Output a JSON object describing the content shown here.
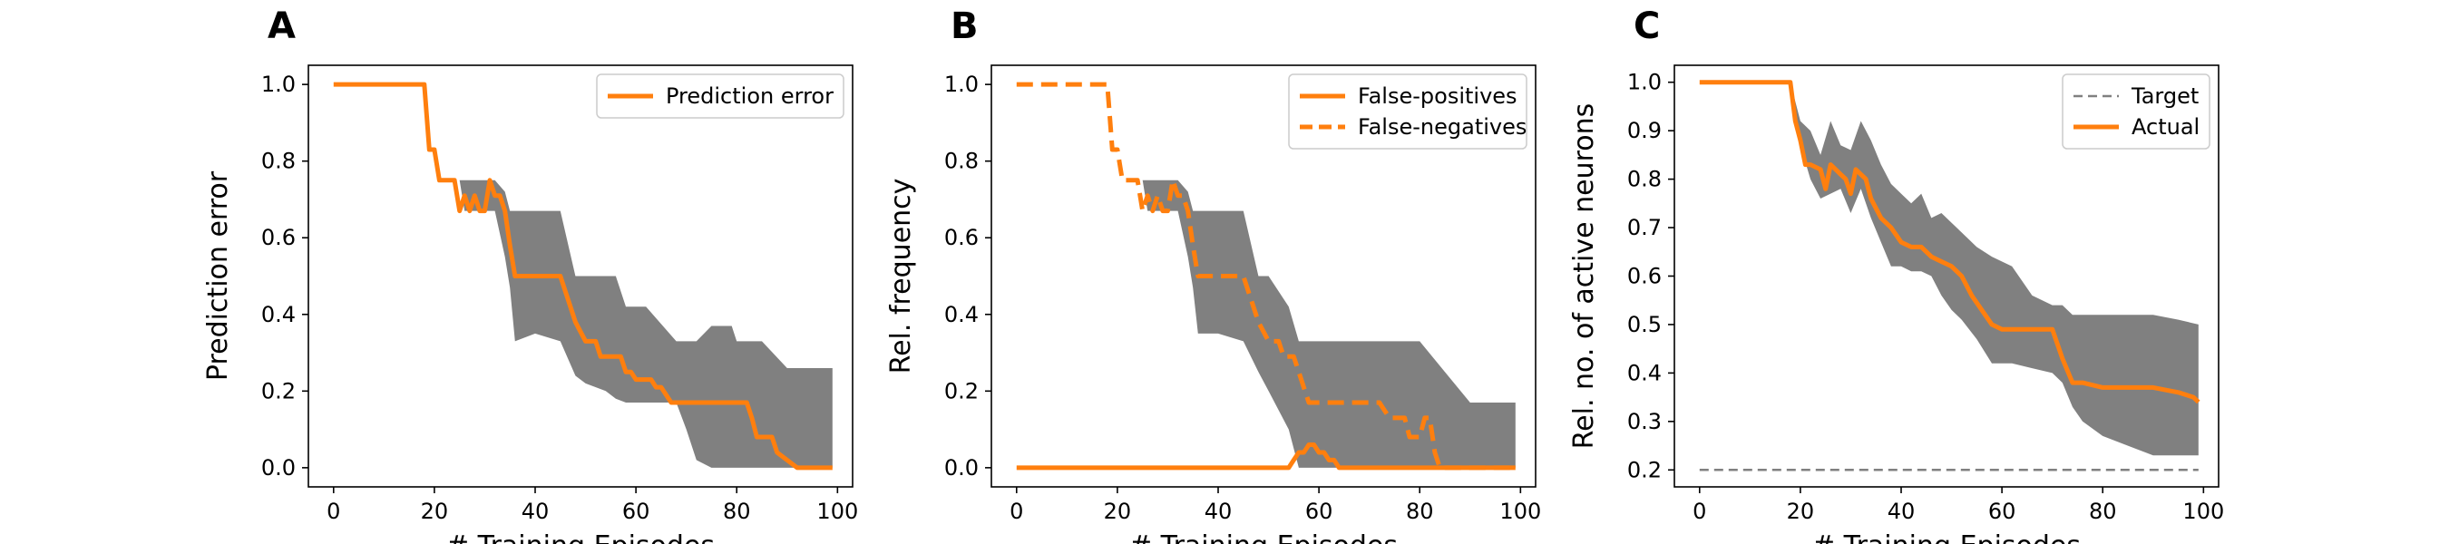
{
  "chart_data": [
    {
      "type": "line",
      "panel_label": "A",
      "xlabel": "# Training Episodes",
      "ylabel": "Prediction error",
      "xlim": [
        -5,
        103
      ],
      "ylim": [
        -0.05,
        1.05
      ],
      "xticks": [
        "0",
        "20",
        "40",
        "60",
        "80",
        "100"
      ],
      "yticks": [
        "0.0",
        "0.2",
        "0.4",
        "0.6",
        "0.8",
        "1.0"
      ],
      "legend_position": "upper-right",
      "legend": [
        "Prediction error"
      ],
      "band_color": "#808080",
      "band": {
        "x": [
          18,
          20,
          22,
          25,
          26,
          28,
          30,
          32,
          34,
          35,
          36,
          40,
          45,
          48,
          50,
          54,
          56,
          58,
          62,
          68,
          70,
          72,
          75,
          79,
          80,
          85,
          90,
          92,
          99
        ],
        "upper": [
          1.0,
          0.83,
          0.75,
          0.75,
          0.75,
          0.75,
          0.75,
          0.75,
          0.72,
          0.67,
          0.67,
          0.67,
          0.67,
          0.5,
          0.5,
          0.5,
          0.5,
          0.42,
          0.42,
          0.33,
          0.33,
          0.33,
          0.37,
          0.37,
          0.33,
          0.33,
          0.26,
          0.26,
          0.26
        ],
        "lower": [
          1.0,
          0.83,
          0.75,
          0.75,
          0.67,
          0.67,
          0.67,
          0.67,
          0.55,
          0.47,
          0.33,
          0.35,
          0.33,
          0.24,
          0.22,
          0.2,
          0.18,
          0.17,
          0.17,
          0.17,
          0.1,
          0.02,
          0.0,
          0.0,
          0.0,
          0.0,
          0.0,
          0.0,
          0.0
        ]
      },
      "series": [
        {
          "name": "Prediction error",
          "color": "#ff7f0e",
          "style": "solid",
          "x": [
            0,
            18,
            19,
            20,
            21,
            22,
            24,
            25,
            26,
            27,
            28,
            29,
            30,
            31,
            32,
            33,
            34,
            35,
            36,
            45,
            46,
            47,
            48,
            50,
            51,
            52,
            53,
            56,
            57,
            58,
            59,
            60,
            63,
            64,
            65,
            66,
            67,
            68,
            72,
            82,
            83,
            84,
            87,
            88,
            92,
            99
          ],
          "y": [
            1.0,
            1.0,
            0.83,
            0.83,
            0.75,
            0.75,
            0.75,
            0.67,
            0.71,
            0.67,
            0.71,
            0.67,
            0.67,
            0.75,
            0.71,
            0.71,
            0.67,
            0.58,
            0.5,
            0.5,
            0.46,
            0.42,
            0.38,
            0.33,
            0.33,
            0.33,
            0.29,
            0.29,
            0.29,
            0.25,
            0.25,
            0.23,
            0.23,
            0.21,
            0.21,
            0.19,
            0.17,
            0.17,
            0.17,
            0.17,
            0.13,
            0.08,
            0.08,
            0.04,
            0.0,
            0.0
          ]
        }
      ]
    },
    {
      "type": "line",
      "panel_label": "B",
      "xlabel": "# Training Episodes",
      "ylabel": "Rel. frequency",
      "xlim": [
        -5,
        103
      ],
      "ylim": [
        -0.05,
        1.05
      ],
      "xticks": [
        "0",
        "20",
        "40",
        "60",
        "80",
        "100"
      ],
      "yticks": [
        "0.0",
        "0.2",
        "0.4",
        "0.6",
        "0.8",
        "1.0"
      ],
      "legend_position": "upper-right",
      "legend": [
        "False-positives",
        "False-negatives"
      ],
      "band_color": "#808080",
      "band": {
        "x": [
          18,
          20,
          22,
          25,
          26,
          28,
          30,
          32,
          34,
          35,
          36,
          40,
          45,
          48,
          50,
          54,
          56,
          58,
          62,
          68,
          70,
          72,
          75,
          79,
          80,
          85,
          90,
          92,
          99
        ],
        "upper": [
          1.0,
          0.83,
          0.75,
          0.75,
          0.75,
          0.75,
          0.75,
          0.75,
          0.72,
          0.67,
          0.67,
          0.67,
          0.67,
          0.5,
          0.5,
          0.42,
          0.33,
          0.33,
          0.33,
          0.33,
          0.33,
          0.33,
          0.33,
          0.33,
          0.33,
          0.25,
          0.17,
          0.17,
          0.17
        ],
        "lower": [
          1.0,
          0.83,
          0.75,
          0.75,
          0.67,
          0.67,
          0.67,
          0.67,
          0.55,
          0.47,
          0.35,
          0.35,
          0.33,
          0.25,
          0.2,
          0.1,
          0.0,
          0.0,
          0.0,
          0.0,
          0.0,
          0.0,
          0.0,
          0.0,
          0.0,
          0.0,
          0.0,
          0.0,
          0.0
        ]
      },
      "series": [
        {
          "name": "False-positives",
          "color": "#ff7f0e",
          "style": "solid",
          "x": [
            0,
            54,
            55,
            56,
            57,
            58,
            59,
            60,
            61,
            62,
            63,
            64,
            99
          ],
          "y": [
            0.0,
            0.0,
            0.02,
            0.04,
            0.04,
            0.06,
            0.06,
            0.04,
            0.04,
            0.02,
            0.02,
            0.0,
            0.0
          ]
        },
        {
          "name": "False-negatives",
          "color": "#ff7f0e",
          "style": "dashed",
          "x": [
            0,
            18,
            19,
            20,
            21,
            22,
            24,
            25,
            26,
            27,
            28,
            29,
            30,
            31,
            32,
            33,
            34,
            35,
            36,
            45,
            46,
            47,
            48,
            50,
            51,
            52,
            53,
            55,
            56,
            57,
            58,
            59,
            60,
            66,
            67,
            68,
            72,
            73,
            74,
            77,
            78,
            80,
            81,
            82,
            83,
            84,
            99
          ],
          "y": [
            1.0,
            1.0,
            0.83,
            0.83,
            0.75,
            0.75,
            0.75,
            0.67,
            0.71,
            0.67,
            0.71,
            0.67,
            0.67,
            0.75,
            0.71,
            0.71,
            0.67,
            0.58,
            0.5,
            0.5,
            0.46,
            0.42,
            0.38,
            0.33,
            0.33,
            0.33,
            0.29,
            0.29,
            0.25,
            0.21,
            0.17,
            0.17,
            0.17,
            0.17,
            0.17,
            0.17,
            0.17,
            0.15,
            0.13,
            0.13,
            0.08,
            0.08,
            0.13,
            0.13,
            0.04,
            0.0,
            0.0
          ]
        }
      ]
    },
    {
      "type": "line",
      "panel_label": "C",
      "xlabel": "# Training Episodes",
      "ylabel": "Rel. no. of active neurons",
      "xlim": [
        -5,
        103
      ],
      "ylim": [
        0.165,
        1.035
      ],
      "xticks": [
        "0",
        "20",
        "40",
        "60",
        "80",
        "100"
      ],
      "yticks": [
        "0.2",
        "0.3",
        "0.4",
        "0.5",
        "0.6",
        "0.7",
        "0.8",
        "0.9",
        "1.0"
      ],
      "legend_position": "upper-right",
      "legend": [
        "Target",
        "Actual"
      ],
      "band_color": "#808080",
      "band": {
        "x": [
          18,
          20,
          22,
          24,
          26,
          28,
          30,
          32,
          34,
          36,
          38,
          40,
          42,
          44,
          46,
          48,
          50,
          52,
          55,
          58,
          62,
          66,
          70,
          72,
          74,
          76,
          80,
          85,
          90,
          95,
          99
        ],
        "upper": [
          1.0,
          0.92,
          0.9,
          0.85,
          0.92,
          0.87,
          0.86,
          0.92,
          0.88,
          0.83,
          0.79,
          0.77,
          0.75,
          0.77,
          0.72,
          0.73,
          0.71,
          0.69,
          0.66,
          0.64,
          0.62,
          0.56,
          0.54,
          0.54,
          0.52,
          0.52,
          0.52,
          0.52,
          0.52,
          0.51,
          0.5
        ],
        "lower": [
          1.0,
          0.87,
          0.8,
          0.76,
          0.77,
          0.78,
          0.73,
          0.78,
          0.72,
          0.67,
          0.62,
          0.62,
          0.61,
          0.61,
          0.6,
          0.56,
          0.53,
          0.51,
          0.47,
          0.42,
          0.42,
          0.41,
          0.4,
          0.38,
          0.33,
          0.3,
          0.27,
          0.25,
          0.23,
          0.23,
          0.23
        ]
      },
      "series": [
        {
          "name": "Target",
          "color": "#808080",
          "style": "dashed",
          "x": [
            0,
            99
          ],
          "y": [
            0.2,
            0.2
          ]
        },
        {
          "name": "Actual",
          "color": "#ff7f0e",
          "style": "solid",
          "x": [
            0,
            18,
            19,
            20,
            21,
            22,
            24,
            25,
            26,
            27,
            28,
            29,
            30,
            31,
            32,
            33,
            34,
            35,
            36,
            38,
            40,
            42,
            44,
            46,
            48,
            50,
            52,
            54,
            56,
            58,
            60,
            65,
            70,
            72,
            74,
            76,
            80,
            85,
            90,
            95,
            98,
            99
          ],
          "y": [
            1.0,
            1.0,
            0.92,
            0.88,
            0.83,
            0.83,
            0.82,
            0.78,
            0.83,
            0.82,
            0.81,
            0.8,
            0.77,
            0.82,
            0.81,
            0.8,
            0.76,
            0.74,
            0.72,
            0.7,
            0.67,
            0.66,
            0.66,
            0.64,
            0.63,
            0.62,
            0.6,
            0.56,
            0.53,
            0.5,
            0.49,
            0.49,
            0.49,
            0.43,
            0.38,
            0.38,
            0.37,
            0.37,
            0.37,
            0.36,
            0.35,
            0.34
          ]
        }
      ]
    }
  ]
}
